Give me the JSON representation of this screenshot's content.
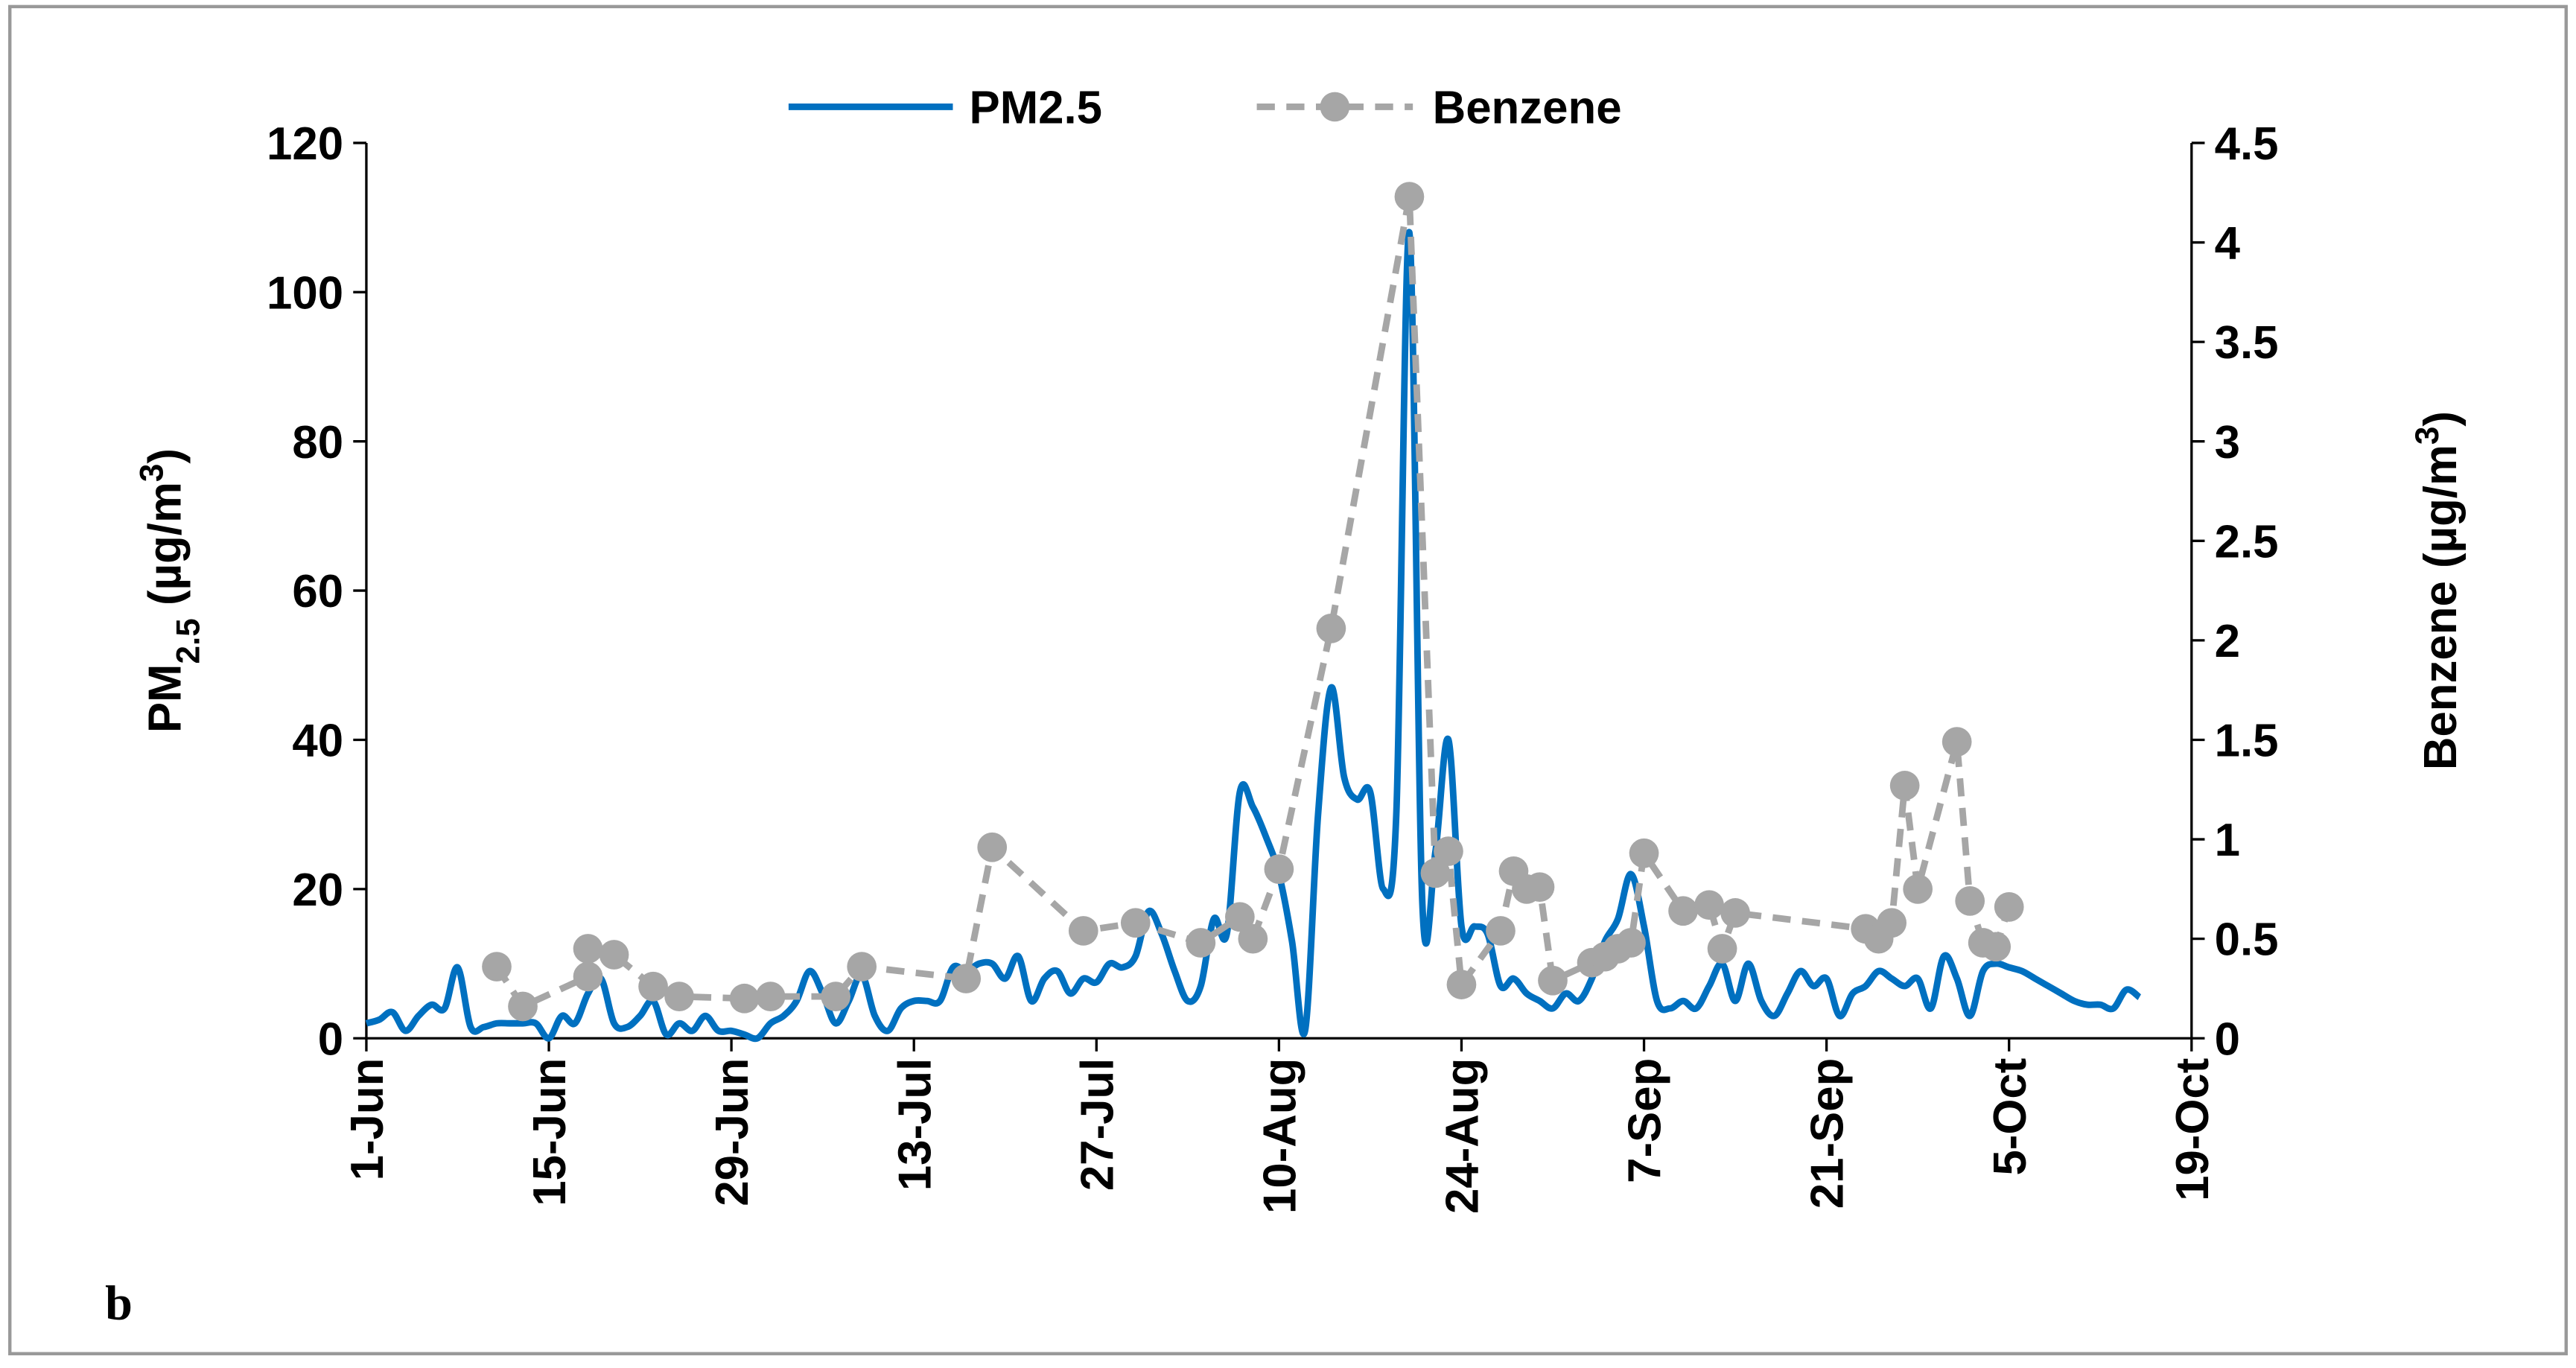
{
  "chart_data": {
    "type": "line",
    "panel_label": "b",
    "ylabel": [
      {
        "text": "PM"
      },
      {
        "text": "2.5",
        "shift": "sub"
      },
      {
        "text": "  (µg/m"
      },
      {
        "text": "3",
        "shift": "super"
      },
      {
        "text": ")"
      }
    ],
    "y2label": [
      {
        "text": "Benzene  (µg/m"
      },
      {
        "text": "3",
        "shift": "super"
      },
      {
        "text": ")"
      }
    ],
    "xlim": [
      "1-Jun",
      "19-Oct"
    ],
    "xticks": [
      "1-Jun",
      "15-Jun",
      "29-Jun",
      "13-Jul",
      "27-Jul",
      "10-Aug",
      "24-Aug",
      "7-Sep",
      "21-Sep",
      "5-Oct",
      "19-Oct"
    ],
    "ylim": [
      0,
      120
    ],
    "yticks": [
      0,
      20,
      40,
      60,
      80,
      100,
      120
    ],
    "y2lim": [
      0,
      4.5
    ],
    "y2ticks": [
      0,
      0.5,
      1,
      1.5,
      2,
      2.5,
      3,
      3.5,
      4,
      4.5
    ],
    "series": [
      {
        "name": "PM2.5",
        "color": "#0070c0",
        "smooth": true,
        "x": [
          "1-Jun",
          "2-Jun",
          "3-Jun",
          "4-Jun",
          "5-Jun",
          "6-Jun",
          "7-Jun",
          "8-Jun",
          "9-Jun",
          "10-Jun",
          "11-Jun",
          "12-Jun",
          "13-Jun",
          "14-Jun",
          "15-Jun",
          "16-Jun",
          "17-Jun",
          "18-Jun",
          "19-Jun",
          "20-Jun",
          "21-Jun",
          "22-Jun",
          "23-Jun",
          "24-Jun",
          "25-Jun",
          "26-Jun",
          "27-Jun",
          "28-Jun",
          "29-Jun",
          "30-Jun",
          "1-Jul",
          "2-Jul",
          "3-Jul",
          "4-Jul",
          "5-Jul",
          "6-Jul",
          "7-Jul",
          "8-Jul",
          "9-Jul",
          "10-Jul",
          "11-Jul",
          "12-Jul",
          "13-Jul",
          "14-Jul",
          "15-Jul",
          "16-Jul",
          "17-Jul",
          "18-Jul",
          "19-Jul",
          "20-Jul",
          "21-Jul",
          "22-Jul",
          "23-Jul",
          "24-Jul",
          "25-Jul",
          "26-Jul",
          "27-Jul",
          "28-Jul",
          "29-Jul",
          "30-Jul",
          "31-Jul",
          "1-Aug",
          "2-Aug",
          "3-Aug",
          "4-Aug",
          "5-Aug",
          "6-Aug",
          "7-Aug",
          "8-Aug",
          "9-Aug",
          "10-Aug",
          "11-Aug",
          "12-Aug",
          "13-Aug",
          "14-Aug",
          "15-Aug",
          "16-Aug",
          "17-Aug",
          "18-Aug",
          "19-Aug",
          "20-Aug",
          "21-Aug",
          "22-Aug",
          "23-Aug",
          "24-Aug",
          "25-Aug",
          "26-Aug",
          "27-Aug",
          "28-Aug",
          "29-Aug",
          "30-Aug",
          "31-Aug",
          "1-Sep",
          "2-Sep",
          "3-Sep",
          "4-Sep",
          "5-Sep",
          "6-Sep",
          "7-Sep",
          "8-Sep",
          "9-Sep",
          "10-Sep",
          "11-Sep",
          "12-Sep",
          "13-Sep",
          "14-Sep",
          "15-Sep",
          "16-Sep",
          "17-Sep",
          "18-Sep",
          "19-Sep",
          "20-Sep",
          "21-Sep",
          "22-Sep",
          "23-Sep",
          "24-Sep",
          "25-Sep",
          "26-Sep",
          "27-Sep",
          "28-Sep",
          "29-Sep",
          "30-Sep",
          "1-Oct",
          "2-Oct",
          "3-Oct",
          "4-Oct",
          "5-Oct",
          "6-Oct",
          "7-Oct",
          "8-Oct",
          "9-Oct",
          "10-Oct",
          "11-Oct",
          "12-Oct",
          "13-Oct",
          "14-Oct",
          "15-Oct"
        ],
        "values": [
          2,
          2.5,
          3.5,
          1,
          3,
          4.5,
          4,
          9.5,
          1.5,
          1.5,
          2,
          2,
          2,
          2,
          0,
          3,
          2,
          6,
          8,
          2,
          1.5,
          3,
          5,
          0.5,
          2,
          1,
          3,
          1,
          1,
          0.5,
          0,
          2,
          3,
          5,
          9,
          6,
          2,
          5,
          8.5,
          3,
          1,
          4,
          5,
          5,
          5,
          9.5,
          9,
          10,
          10,
          8,
          11,
          5,
          8,
          9,
          6,
          8,
          7.5,
          10,
          9.5,
          11,
          17,
          14,
          9,
          5,
          7,
          16,
          14,
          33,
          31,
          27,
          22,
          13,
          1,
          30,
          47,
          35,
          32,
          33,
          20,
          30,
          108,
          18,
          25,
          40,
          15,
          15,
          14,
          7,
          8,
          6,
          5,
          4,
          6,
          5,
          8,
          13,
          16,
          22,
          15,
          5,
          4,
          5,
          4,
          7,
          10,
          5,
          10,
          5,
          3,
          6,
          9,
          7,
          8,
          3,
          6,
          7,
          9,
          8,
          7,
          8,
          4,
          11,
          8,
          3,
          9,
          10,
          9.5,
          9,
          8,
          7,
          6,
          5,
          4.5,
          4.5,
          4,
          6.5,
          5.5
        ]
      },
      {
        "name": "Benzene",
        "color": "#a6a6a6",
        "axis": "y2",
        "dashed": true,
        "markers": true,
        "x": [
          "11-Jun",
          "13-Jun",
          "18-Jun",
          "18-Jun",
          "20-Jun",
          "23-Jun",
          "25-Jun",
          "30-Jun",
          "2-Jul",
          "7-Jul",
          "9-Jul",
          "17-Jul",
          "19-Jul",
          "26-Jul",
          "30-Jul",
          "4-Aug",
          "7-Aug",
          "8-Aug",
          "10-Aug",
          "14-Aug",
          "20-Aug",
          "22-Aug",
          "23-Aug",
          "24-Aug",
          "27-Aug",
          "28-Aug",
          "29-Aug",
          "30-Aug",
          "31-Aug",
          "3-Sep",
          "4-Sep",
          "5-Sep",
          "6-Sep",
          "7-Sep",
          "10-Sep",
          "12-Sep",
          "13-Sep",
          "14-Sep",
          "24-Sep",
          "25-Sep",
          "26-Sep",
          "27-Sep",
          "28-Sep",
          "1-Oct",
          "2-Oct",
          "3-Oct",
          "4-Oct",
          "5-Oct"
        ],
        "values": [
          0.36,
          0.16,
          0.31,
          0.45,
          0.42,
          0.26,
          0.21,
          0.2,
          0.21,
          0.21,
          0.36,
          0.3,
          0.96,
          0.54,
          0.58,
          0.48,
          0.61,
          0.5,
          0.85,
          2.06,
          4.23,
          0.83,
          0.94,
          0.27,
          0.54,
          0.84,
          0.75,
          0.76,
          0.29,
          0.38,
          0.41,
          0.45,
          0.48,
          0.93,
          0.64,
          0.67,
          0.45,
          0.63,
          0.55,
          0.5,
          0.58,
          1.27,
          0.75,
          1.49,
          0.69,
          0.48,
          0.46,
          0.66
        ]
      }
    ]
  }
}
